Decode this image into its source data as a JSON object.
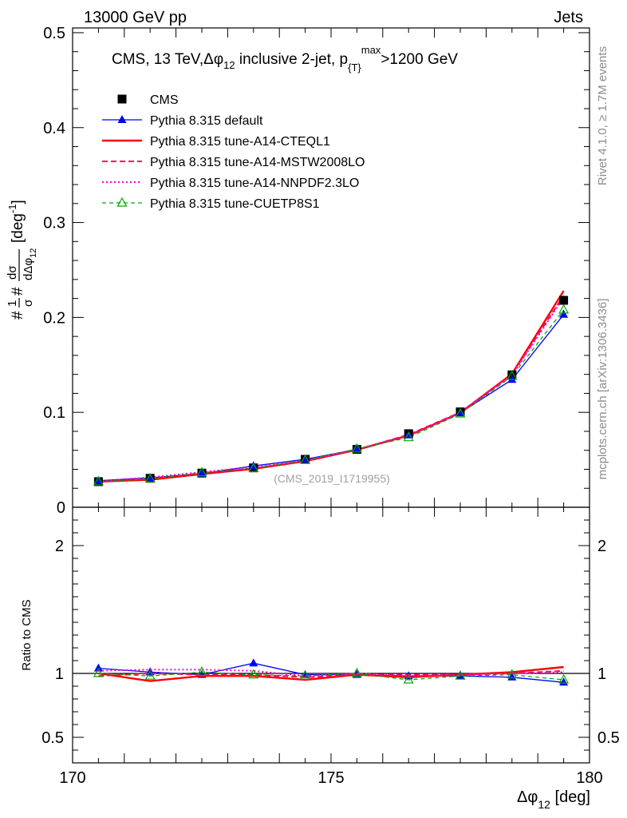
{
  "header": {
    "left": "13000 GeV pp",
    "right": "Jets"
  },
  "side_labels": {
    "rivet": "Rivet 4.1.0, ≥ 1.7M events",
    "mcplots": "mcplots.cern.ch [arXiv:1306.3436]"
  },
  "chart_data": [
    {
      "type": "line",
      "title": {
        "prefix": "CMS, 13 TeV,",
        "dphi": "Δφ",
        "sub12": "12",
        "mid": " inclusive 2-jet,  p",
        "subT": "{T}",
        "supmax": "max",
        "suffix": ">1200 GeV"
      },
      "ylabel": {
        "prefix": "#",
        "frac1_num": "1",
        "frac1_den": "σ",
        "mid": "#",
        "frac2_num": "dσ",
        "frac2_den": "dΔφ",
        "frac2_den_sub": "12",
        "unit": "[deg",
        "unit_sup": "-1",
        "unit_end": "]"
      },
      "xlim": [
        170,
        180
      ],
      "ylim": [
        0,
        0.505
      ],
      "yticks": [
        {
          "v": 0,
          "label": "0"
        },
        {
          "v": 0.1,
          "label": "0.1"
        },
        {
          "v": 0.2,
          "label": "0.2"
        },
        {
          "v": 0.3,
          "label": "0.3"
        },
        {
          "v": 0.4,
          "label": "0.4"
        },
        {
          "v": 0.5,
          "label": "0.5"
        }
      ],
      "watermark": "(CMS_2019_I1719955)",
      "x": [
        170.5,
        171.5,
        172.5,
        173.5,
        174.5,
        175.5,
        176.5,
        177.5,
        178.5,
        179.5
      ],
      "series": [
        {
          "name": "CMS",
          "color": "#000000",
          "style": "data",
          "marker": "square",
          "values": [
            0.027,
            0.0305,
            0.036,
            0.0415,
            0.0505,
            0.061,
            0.0775,
            0.1005,
            0.1395,
            0.218
          ]
        },
        {
          "name": "Pythia 8.315 default",
          "color": "#0000ff",
          "style": "solid-thin",
          "marker": "triangle",
          "values": [
            0.028,
            0.031,
            0.0355,
            0.0435,
            0.0505,
            0.061,
            0.076,
            0.0995,
            0.1345,
            0.203
          ]
        },
        {
          "name": "Pythia 8.315 tune-A14-CTEQL1",
          "color": "#ff0000",
          "style": "solid-thick",
          "marker": "none",
          "values": [
            0.027,
            0.029,
            0.035,
            0.0405,
            0.0485,
            0.0605,
            0.0755,
            0.0995,
            0.1405,
            0.228
          ]
        },
        {
          "name": "Pythia 8.315 tune-A14-MSTW2008LO",
          "color": "#ff0066",
          "style": "dashed",
          "marker": "none",
          "values": [
            0.0265,
            0.0305,
            0.0355,
            0.041,
            0.049,
            0.0605,
            0.0765,
            0.1,
            0.14,
            0.223
          ]
        },
        {
          "name": "Pythia 8.315 tune-A14-NNPDF2.3LO",
          "color": "#ff00cc",
          "style": "dotted",
          "marker": "none",
          "values": [
            0.0275,
            0.0315,
            0.037,
            0.0425,
            0.0495,
            0.061,
            0.076,
            0.0995,
            0.139,
            0.221
          ]
        },
        {
          "name": "Pythia 8.315 tune-CUETP8S1",
          "color": "#00aa00",
          "style": "dashed-thin",
          "marker": "open-triangle",
          "values": [
            0.027,
            0.03,
            0.0365,
            0.041,
            0.0495,
            0.0615,
            0.0735,
            0.0985,
            0.138,
            0.208
          ]
        }
      ]
    },
    {
      "type": "line",
      "ylabel": "Ratio to CMS",
      "xlabel": {
        "dphi": "Δφ",
        "sub12": "12",
        "unit": " [deg]"
      },
      "xlim": [
        170,
        180
      ],
      "ylim": [
        0.3,
        2.3
      ],
      "yticks": [
        {
          "v": 0.5,
          "label": "0.5"
        },
        {
          "v": 1,
          "label": "1"
        },
        {
          "v": 2,
          "label": "2"
        }
      ],
      "xticks": [
        {
          "v": 170,
          "label": "170"
        },
        {
          "v": 175,
          "label": "175"
        },
        {
          "v": 180,
          "label": "180"
        }
      ],
      "x": [
        170.5,
        171.5,
        172.5,
        173.5,
        174.5,
        175.5,
        176.5,
        177.5,
        178.5,
        179.5
      ],
      "series": [
        {
          "name": "Pythia 8.315 default",
          "color": "#0000ff",
          "style": "solid-thin",
          "marker": "triangle",
          "values": [
            1.04,
            1.01,
            0.99,
            1.08,
            0.99,
            0.99,
            0.98,
            0.98,
            0.97,
            0.93
          ]
        },
        {
          "name": "Pythia 8.315 tune-A14-CTEQL1",
          "color": "#ff0000",
          "style": "solid-thick",
          "marker": "none",
          "values": [
            1.0,
            0.94,
            0.98,
            0.98,
            0.95,
            0.99,
            0.97,
            0.99,
            1.01,
            1.05
          ]
        },
        {
          "name": "Pythia 8.315 tune-A14-MSTW2008LO",
          "color": "#ff0066",
          "style": "dashed",
          "marker": "none",
          "values": [
            0.98,
            1.0,
            0.99,
            0.99,
            0.97,
            0.99,
            0.99,
            0.99,
            1.0,
            1.02
          ]
        },
        {
          "name": "Pythia 8.315 tune-A14-NNPDF2.3LO",
          "color": "#ff00cc",
          "style": "dotted",
          "marker": "none",
          "values": [
            1.02,
            1.03,
            1.03,
            1.02,
            0.98,
            1.0,
            0.98,
            0.99,
            1.0,
            1.01
          ]
        },
        {
          "name": "Pythia 8.315 tune-CUETP8S1",
          "color": "#00aa00",
          "style": "dashed-thin",
          "marker": "open-triangle",
          "values": [
            1.0,
            0.98,
            1.01,
            0.99,
            0.98,
            1.0,
            0.95,
            0.98,
            0.99,
            0.95
          ]
        }
      ]
    }
  ]
}
